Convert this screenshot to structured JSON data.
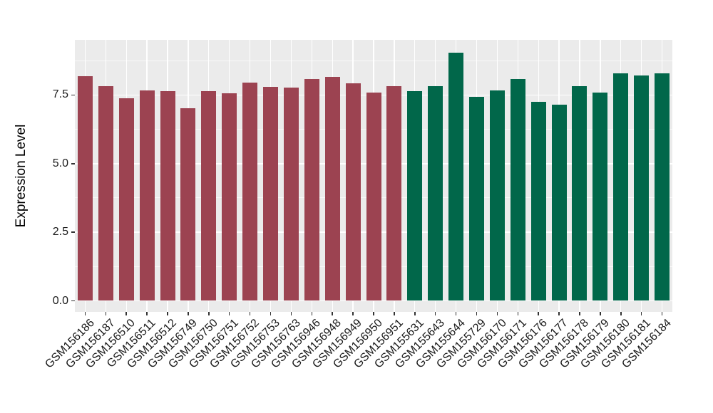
{
  "chart_data": {
    "type": "bar",
    "title": "",
    "xlabel": "",
    "ylabel": "Expression Level",
    "ylim": [
      0,
      9.51
    ],
    "grid": "on",
    "legend": "none",
    "y_tick_labels": [
      "0.0",
      "2.5",
      "5.0",
      "7.5"
    ],
    "y_major_ticks": [
      0,
      2.5,
      5.0,
      7.5
    ],
    "y_minor_ticks": [
      1.25,
      3.75,
      6.25,
      8.75
    ],
    "categories": [
      "GSM156186",
      "GSM156187",
      "GSM156510",
      "GSM156511",
      "GSM156512",
      "GSM156749",
      "GSM156750",
      "GSM156751",
      "GSM156752",
      "GSM156753",
      "GSM156763",
      "GSM156946",
      "GSM156948",
      "GSM156949",
      "GSM156950",
      "GSM156951",
      "GSM155631",
      "GSM155643",
      "GSM155644",
      "GSM155729",
      "GSM156170",
      "GSM156171",
      "GSM156176",
      "GSM156177",
      "GSM156178",
      "GSM156179",
      "GSM156180",
      "GSM156181",
      "GSM156184"
    ],
    "values": [
      8.19,
      7.81,
      7.39,
      7.67,
      7.63,
      7.01,
      7.65,
      7.55,
      7.95,
      7.8,
      7.76,
      8.09,
      8.15,
      7.92,
      7.58,
      7.82,
      7.63,
      7.82,
      9.05,
      7.42,
      7.67,
      8.07,
      7.25,
      7.15,
      7.82,
      7.59,
      8.28,
      8.21,
      8.28
    ],
    "bar_groups": [
      "maroon",
      "maroon",
      "maroon",
      "maroon",
      "maroon",
      "maroon",
      "maroon",
      "maroon",
      "maroon",
      "maroon",
      "maroon",
      "maroon",
      "maroon",
      "maroon",
      "maroon",
      "maroon",
      "green",
      "green",
      "green",
      "green",
      "green",
      "green",
      "green",
      "green",
      "green",
      "green",
      "green",
      "green",
      "green"
    ],
    "group_colors": {
      "maroon": "#9C4351",
      "green": "#01674A"
    },
    "panel_background": "#EBEBEB",
    "gridline_color": "#FFFFFF"
  }
}
